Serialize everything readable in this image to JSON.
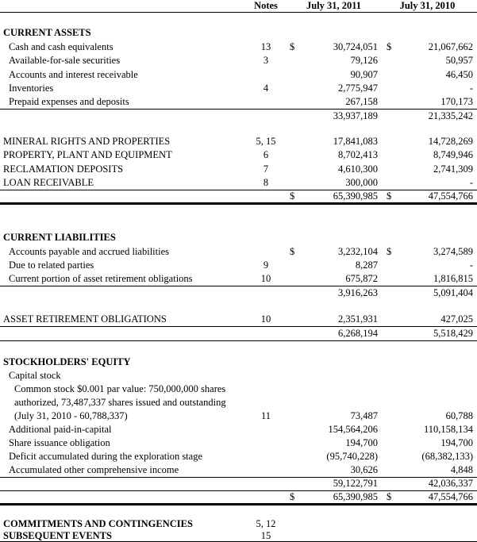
{
  "columns": {
    "notes": "Notes",
    "year1": "July 31, 2011",
    "year2": "July 31, 2010"
  },
  "rows": [
    {
      "c": "head",
      "notes": "Notes",
      "v1": "July 31, 2011",
      "v2": "July 31, 2010",
      "b": "bb",
      "h": 15
    },
    {
      "c": "spacer",
      "h": 18
    },
    {
      "c": "section",
      "label": "CURRENT ASSETS",
      "h": 17
    },
    {
      "c": "item",
      "label": "Cash and cash equivalents",
      "notes": "13",
      "d1": "$",
      "v1": "30,724,051",
      "d2": "$",
      "v2": "21,067,662",
      "h": 17.5
    },
    {
      "c": "item",
      "label": "Available-for-sale securities",
      "notes": "3",
      "v1": "79,126",
      "v2": "50,957",
      "h": 17.5
    },
    {
      "c": "item",
      "label": "Accounts and interest receivable",
      "v1": "90,907",
      "v2": "46,450",
      "h": 17.5
    },
    {
      "c": "item",
      "label": "Inventories",
      "notes": "4",
      "v1": "2,775,947",
      "v2": "-",
      "h": 17.5
    },
    {
      "c": "item",
      "label": "Prepaid expenses and deposits",
      "v1": "267,158",
      "v2": "170,173",
      "b": "bb",
      "h": 17.5
    },
    {
      "c": "item",
      "v1": "33,937,189",
      "v2": "21,335,242",
      "h": 17.5
    },
    {
      "c": "spacer",
      "h": 14
    },
    {
      "c": "caps",
      "label": "MINERAL RIGHTS AND PROPERTIES",
      "notes": "5, 15",
      "v1": "17,841,083",
      "v2": "14,728,269",
      "h": 17.5
    },
    {
      "c": "caps",
      "label": "PROPERTY, PLANT AND EQUIPMENT",
      "notes": "6",
      "v1": "8,702,413",
      "v2": "8,749,946",
      "h": 17.5
    },
    {
      "c": "caps",
      "label": "RECLAMATION DEPOSITS",
      "notes": "7",
      "v1": "4,610,300",
      "v2": "2,741,309",
      "h": 17.5
    },
    {
      "c": "caps",
      "label": "LOAN RECEIVABLE",
      "notes": "8",
      "v1": "300,000",
      "v2": "-",
      "b": "bb",
      "h": 17.5
    },
    {
      "c": "item",
      "d1": "$",
      "v1": "65,390,985",
      "d2": "$",
      "v2": "47,554,766",
      "b": "thick",
      "h": 17
    },
    {
      "c": "spacer",
      "h": 35
    },
    {
      "c": "section",
      "label": "CURRENT LIABILITIES",
      "h": 17
    },
    {
      "c": "item",
      "label": "Accounts payable and accrued liabilities",
      "d1": "$",
      "v1": "3,232,104",
      "d2": "$",
      "v2": "3,274,589",
      "h": 17.5
    },
    {
      "c": "item",
      "label": "Due to related parties",
      "notes": "9",
      "v1": "8,287",
      "v2": "-",
      "h": 17.5
    },
    {
      "c": "item",
      "label": "Current portion of asset retirement obligations",
      "notes": "10",
      "v1": "675,872",
      "v2": "1,816,815",
      "b": "bb",
      "h": 17.5
    },
    {
      "c": "item",
      "v1": "3,916,263",
      "v2": "5,091,404",
      "h": 17.5
    },
    {
      "c": "spacer",
      "h": 16
    },
    {
      "c": "caps",
      "label": "ASSET RETIREMENT OBLIGATIONS",
      "notes": "10",
      "v1": "2,351,931",
      "v2": "427,025",
      "b": "bb",
      "h": 17.5
    },
    {
      "c": "item",
      "v1": "6,268,194",
      "v2": "5,518,429",
      "b": "bb",
      "h": 17.5
    },
    {
      "c": "spacer",
      "h": 19
    },
    {
      "c": "section",
      "label": "STOCKHOLDERS' EQUITY",
      "h": 17
    },
    {
      "c": "item",
      "label": "Capital stock",
      "h": 17
    },
    {
      "c": "item2",
      "label": "Common stock $0.001 par value: 750,000,000 shares",
      "h": 17
    },
    {
      "c": "item2",
      "label": "authorized, 73,487,337 shares issued and outstanding",
      "h": 17
    },
    {
      "c": "item2",
      "label": "(July 31, 2010 - 60,788,337)",
      "notes": "11",
      "v1": "73,487",
      "v2": "60,788",
      "h": 17
    },
    {
      "c": "item",
      "label": "Additional paid-in-capital",
      "v1": "154,564,206",
      "v2": "110,158,134",
      "h": 17
    },
    {
      "c": "item",
      "label": "Share issuance obligation",
      "v1": "194,700",
      "v2": "194,700",
      "h": 17
    },
    {
      "c": "item",
      "label": "Deficit accumulated during the exploration stage",
      "v1": "(95,740,228)",
      "v2": "(68,382,133)",
      "h": 17
    },
    {
      "c": "item",
      "label": "Accumulated other comprehensive income",
      "v1": "30,626",
      "v2": "4,848",
      "b": "bb",
      "h": 17
    },
    {
      "c": "item",
      "v1": "59,122,791",
      "v2": "42,036,337",
      "b": "bb",
      "h": 17
    },
    {
      "c": "item",
      "d1": "$",
      "v1": "65,390,985",
      "d2": "$",
      "v2": "47,554,766",
      "b": "thick",
      "h": 17.5
    },
    {
      "c": "spacer",
      "h": 16
    },
    {
      "c": "section",
      "label": "COMMITMENTS AND CONTINGENCIES",
      "notes": "5, 12",
      "h": 17
    },
    {
      "c": "section",
      "label": "SUBSEQUENT EVENTS",
      "notes": "15",
      "h": 14.5
    }
  ]
}
